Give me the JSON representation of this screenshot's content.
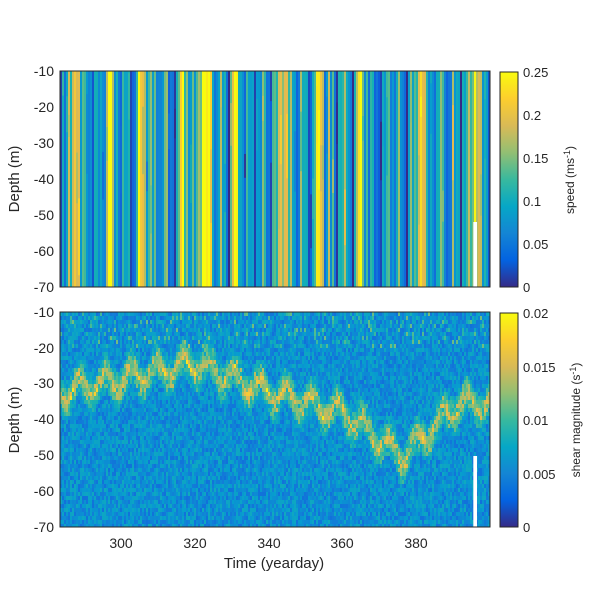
{
  "chart_data": [
    {
      "type": "heatmap",
      "panel": "top",
      "title": "",
      "xlabel": "",
      "ylabel": "Depth (m)",
      "xlim": [
        283,
        399
      ],
      "ylim": [
        -70,
        -10
      ],
      "yticks": [
        "-10",
        "-20",
        "-30",
        "-40",
        "-50",
        "-60",
        "-70"
      ],
      "colorbar": {
        "label": "speed (ms",
        "label_sup": "-1",
        "label_end": ")",
        "lim": [
          0,
          0.25
        ],
        "ticks": [
          "0.25",
          "0.2",
          "0.15",
          "0.1",
          "0.05",
          "0"
        ],
        "colormap": "parula"
      },
      "bright_bands_yearday": [
        287,
        296,
        305,
        316,
        321,
        323,
        330,
        343,
        353,
        364,
        380,
        395
      ],
      "note_pattern": "vertical bands, depth-uniform speed"
    },
    {
      "type": "heatmap",
      "panel": "bottom",
      "title": "",
      "xlabel": "Time (yearday)",
      "ylabel": "Depth (m)",
      "xlim": [
        283,
        399
      ],
      "ylim": [
        -70,
        -10
      ],
      "xticks": [
        "300",
        "320",
        "340",
        "360",
        "380"
      ],
      "yticks": [
        "-10",
        "-20",
        "-30",
        "-40",
        "-50",
        "-60",
        "-70"
      ],
      "colorbar": {
        "label": "shear magnitude (s",
        "label_sup": "-1",
        "label_end": ")",
        "lim": [
          0,
          0.02
        ],
        "ticks": [
          "0.02",
          "0.015",
          "0.01",
          "0.005",
          "0"
        ],
        "colormap": "parula"
      },
      "high_shear_layer_depth_m": [
        [
          283,
          -32
        ],
        [
          300,
          -28
        ],
        [
          320,
          -24
        ],
        [
          340,
          -32
        ],
        [
          360,
          -38
        ],
        [
          375,
          -50
        ],
        [
          390,
          -35
        ]
      ]
    }
  ],
  "colors": {
    "parula_low": "#352a87",
    "parula_mid": "#13beb8",
    "parula_high": "#f9fb0e"
  }
}
